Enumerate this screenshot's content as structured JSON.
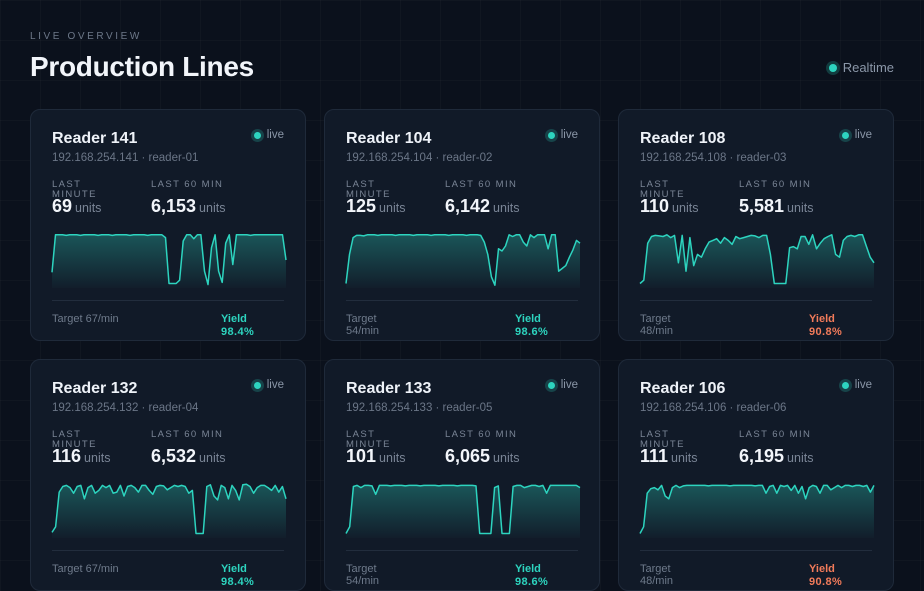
{
  "header": {
    "eyebrow": "LIVE OVERVIEW",
    "title": "Production Lines",
    "realtime_label": "Realtime"
  },
  "labels": {
    "live": "live",
    "last_minute": "LAST MINUTE",
    "last_60_min": "LAST 60 MIN",
    "units": "units",
    "yield": "Yield"
  },
  "colors": {
    "accent": "#2dd4bf",
    "warning": "#f27b5a"
  },
  "cards": [
    {
      "name": "Reader 141",
      "address": "192.168.254.141 · reader-01",
      "last_minute": "69",
      "last_60": "6,153",
      "target": "Target 67/min",
      "yield": "98.4%",
      "yield_status": "ok",
      "sparkline": [
        0.28,
        0.95,
        0.95,
        0.95,
        0.94,
        0.95,
        0.95,
        0.95,
        0.94,
        0.95,
        0.95,
        0.95,
        0.95,
        0.94,
        0.95,
        0.95,
        0.95,
        0.94,
        0.95,
        0.95,
        0.95,
        0.95,
        0.94,
        0.95,
        0.95,
        0.95,
        0.95,
        0.94,
        0.95,
        0.95,
        0.95,
        0.95,
        0.9,
        0.08,
        0.08,
        0.08,
        0.14,
        0.84,
        0.95,
        0.95,
        0.88,
        0.95,
        0.95,
        0.3,
        0.06,
        0.72,
        0.95,
        0.3,
        0.1,
        0.8,
        0.95,
        0.42,
        0.95,
        0.95,
        0.95,
        0.95,
        0.94,
        0.95,
        0.95,
        0.95,
        0.95,
        0.95,
        0.95,
        0.95,
        0.95,
        0.95,
        0.5
      ]
    },
    {
      "name": "Reader 104",
      "address": "192.168.254.104 · reader-02",
      "last_minute": "125",
      "last_60": "6,142",
      "target": "Target 54/min",
      "yield": "98.6%",
      "yield_status": "ok",
      "sparkline": [
        0.08,
        0.6,
        0.9,
        0.94,
        0.94,
        0.93,
        0.95,
        0.95,
        0.95,
        0.94,
        0.95,
        0.95,
        0.95,
        0.95,
        0.94,
        0.95,
        0.95,
        0.95,
        0.95,
        0.94,
        0.95,
        0.95,
        0.95,
        0.95,
        0.94,
        0.95,
        0.95,
        0.95,
        0.95,
        0.94,
        0.95,
        0.95,
        0.95,
        0.95,
        0.94,
        0.95,
        0.95,
        0.95,
        0.94,
        0.82,
        0.6,
        0.2,
        0.05,
        0.7,
        0.66,
        0.75,
        0.95,
        0.92,
        0.95,
        0.95,
        0.82,
        0.75,
        0.95,
        0.9,
        0.95,
        0.95,
        0.95,
        0.7,
        0.95,
        0.95,
        0.3,
        0.35,
        0.4,
        0.55,
        0.68,
        0.85,
        0.8
      ]
    },
    {
      "name": "Reader 108",
      "address": "192.168.254.108 · reader-03",
      "last_minute": "110",
      "last_60": "5,581",
      "target": "Target 48/min",
      "yield": "90.8%",
      "yield_status": "warn",
      "sparkline": [
        0.08,
        0.14,
        0.8,
        0.92,
        0.94,
        0.93,
        0.92,
        0.95,
        0.9,
        0.94,
        0.45,
        0.94,
        0.3,
        0.9,
        0.4,
        0.6,
        0.55,
        0.7,
        0.82,
        0.85,
        0.88,
        0.8,
        0.9,
        0.85,
        0.78,
        0.92,
        0.88,
        0.9,
        0.92,
        0.94,
        0.93,
        0.9,
        0.94,
        0.94,
        0.6,
        0.08,
        0.08,
        0.08,
        0.08,
        0.72,
        0.74,
        0.7,
        0.92,
        0.92,
        0.78,
        0.95,
        0.7,
        0.8,
        0.88,
        0.92,
        0.95,
        0.6,
        0.55,
        0.85,
        0.92,
        0.94,
        0.92,
        0.95,
        0.95,
        0.75,
        0.55,
        0.45
      ]
    },
    {
      "name": "Reader 132",
      "address": "192.168.254.132 · reader-04",
      "last_minute": "116",
      "last_60": "6,532",
      "target": "Target 67/min",
      "yield": "98.4%",
      "yield_status": "ok",
      "sparkline": [
        0.1,
        0.2,
        0.82,
        0.92,
        0.94,
        0.9,
        0.8,
        0.92,
        0.94,
        0.7,
        0.9,
        0.94,
        0.8,
        0.85,
        0.94,
        0.9,
        0.94,
        0.8,
        0.82,
        0.94,
        0.75,
        0.92,
        0.94,
        0.9,
        0.82,
        0.94,
        0.94,
        0.85,
        0.78,
        0.92,
        0.94,
        0.93,
        0.86,
        0.9,
        0.94,
        0.92,
        0.94,
        0.92,
        0.8,
        0.85,
        0.08,
        0.08,
        0.08,
        0.92,
        0.95,
        0.75,
        0.68,
        0.94,
        0.9,
        0.7,
        0.94,
        0.85,
        0.68,
        0.95,
        0.96,
        0.92,
        0.8,
        0.9,
        0.94,
        0.94,
        0.9,
        0.85,
        0.94,
        0.82,
        0.92,
        0.7
      ]
    },
    {
      "name": "Reader 133",
      "address": "192.168.254.133 · reader-05",
      "last_minute": "101",
      "last_60": "6,065",
      "target": "Target 54/min",
      "yield": "98.6%",
      "yield_status": "ok",
      "sparkline": [
        0.08,
        0.2,
        0.92,
        0.94,
        0.9,
        0.94,
        0.94,
        0.93,
        0.78,
        0.94,
        0.94,
        0.94,
        0.93,
        0.94,
        0.94,
        0.94,
        0.93,
        0.94,
        0.94,
        0.94,
        0.93,
        0.94,
        0.94,
        0.94,
        0.94,
        0.93,
        0.94,
        0.94,
        0.94,
        0.94,
        0.93,
        0.94,
        0.94,
        0.94,
        0.94,
        0.93,
        0.08,
        0.08,
        0.08,
        0.08,
        0.9,
        0.93,
        0.08,
        0.08,
        0.08,
        0.92,
        0.94,
        0.94,
        0.9,
        0.92,
        0.94,
        0.94,
        0.92,
        0.94,
        0.8,
        0.94,
        0.94,
        0.94,
        0.94,
        0.94,
        0.94,
        0.94,
        0.94,
        0.9
      ]
    },
    {
      "name": "Reader 106",
      "address": "192.168.254.106 · reader-06",
      "last_minute": "111",
      "last_60": "6,195",
      "target": "Target 48/min",
      "yield": "90.8%",
      "yield_status": "warn",
      "sparkline": [
        0.08,
        0.2,
        0.8,
        0.88,
        0.9,
        0.86,
        0.94,
        0.75,
        0.7,
        0.9,
        0.94,
        0.9,
        0.93,
        0.94,
        0.94,
        0.94,
        0.94,
        0.94,
        0.94,
        0.93,
        0.94,
        0.94,
        0.94,
        0.94,
        0.94,
        0.93,
        0.94,
        0.94,
        0.94,
        0.94,
        0.94,
        0.94,
        0.93,
        0.94,
        0.94,
        0.8,
        0.92,
        0.94,
        0.8,
        0.94,
        0.92,
        0.94,
        0.85,
        0.94,
        0.8,
        0.92,
        0.7,
        0.9,
        0.94,
        0.92,
        0.8,
        0.94,
        0.94,
        0.86,
        0.9,
        0.94,
        0.9,
        0.94,
        0.94,
        0.92,
        0.94,
        0.94,
        0.92,
        0.94,
        0.82,
        0.94
      ]
    }
  ]
}
